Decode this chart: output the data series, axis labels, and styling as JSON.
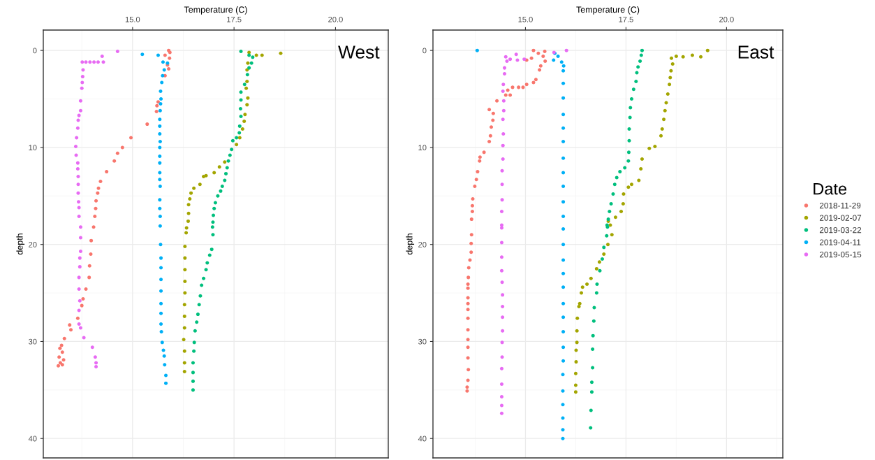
{
  "chart_data": [
    {
      "type": "scatter",
      "title": "West",
      "xlabel": "Temperature (C)",
      "ylabel": "depth",
      "xlim": [
        12.8,
        21.3
      ],
      "ylim": [
        42,
        -2.1
      ],
      "xticks": [
        {
          "value": 15,
          "label": "15.0"
        },
        {
          "value": 17.5,
          "label": "17.5"
        },
        {
          "value": 20,
          "label": "20.0"
        }
      ],
      "yticks": [
        0,
        10,
        20,
        30,
        40
      ],
      "grid": true,
      "marker": "circle",
      "series": [
        {
          "color": "#f8766d",
          "x": [
            15.89,
            15.92,
            15.8,
            15.91,
            15.86,
            15.89,
            15.8,
            15.63,
            15.6,
            15.59,
            15.36,
            14.96,
            14.75,
            14.63,
            14.55,
            14.36,
            14.21,
            14.16,
            14.14,
            14.1,
            14.09,
            14.07,
            14.04,
            13.98,
            13.97,
            13.94,
            13.93,
            13.85,
            13.78,
            13.75,
            13.65,
            13.45,
            13.48,
            13.32,
            13.25,
            13.21,
            13.27,
            13.19,
            13.3,
            13.22,
            13.17,
            13.27
          ],
          "values": [
            0,
            0.2,
            0.5,
            0.8,
            1.5,
            1.9,
            2.6,
            5.3,
            5.7,
            6.3,
            7.6,
            9.0,
            10.0,
            10.6,
            11.4,
            12.5,
            13.5,
            14.2,
            14.7,
            15.5,
            16.3,
            17.1,
            18.2,
            19.6,
            21.0,
            22.2,
            23.4,
            24.6,
            25.6,
            26.3,
            27.6,
            28.3,
            28.8,
            29.7,
            30.4,
            30.7,
            31.1,
            31.6,
            31.9,
            32.2,
            32.5,
            32.4
          ]
        },
        {
          "color": "#a3a500",
          "x": [
            18.65,
            18.19,
            18.05,
            17.87,
            17.84,
            17.82,
            17.82,
            17.8,
            17.84,
            17.82,
            17.77,
            17.75,
            17.71,
            17.64,
            17.56,
            17.27,
            17.14,
            17.01,
            16.81,
            16.75,
            16.66,
            16.51,
            16.44,
            16.41,
            16.38,
            16.38,
            16.37,
            16.33,
            16.32,
            16.29,
            16.29,
            16.29,
            16.29,
            16.29,
            16.28,
            16.28,
            16.28,
            16.26,
            16.28,
            16.28,
            16.28
          ],
          "values": [
            0.3,
            0.5,
            0.5,
            0.2,
            1.3,
            2.0,
            3.2,
            3.9,
            4.9,
            5.6,
            6.6,
            7.3,
            8.1,
            9.0,
            9.7,
            11.5,
            12.0,
            12.6,
            12.9,
            13.0,
            13.8,
            14.2,
            14.7,
            15.3,
            15.9,
            16.8,
            17.6,
            18.3,
            18.8,
            20.2,
            21.4,
            22.6,
            23.8,
            25.0,
            26.2,
            27.4,
            28.6,
            29.8,
            31.0,
            32.2,
            33.1
          ]
        },
        {
          "color": "#00bf7d",
          "x": [
            17.67,
            17.87,
            17.96,
            17.93,
            17.87,
            17.83,
            17.76,
            17.67,
            17.67,
            17.66,
            17.67,
            17.64,
            17.63,
            17.56,
            17.47,
            17.44,
            17.4,
            17.36,
            17.33,
            17.3,
            17.27,
            17.21,
            17.17,
            17.1,
            17.04,
            17.01,
            16.99,
            16.98,
            16.97,
            16.98,
            16.95,
            16.9,
            16.84,
            16.81,
            16.75,
            16.7,
            16.67,
            16.64,
            16.61,
            16.58,
            16.54,
            16.52,
            16.51,
            16.49,
            16.49,
            16.49,
            16.49
          ],
          "values": [
            0.1,
            0.5,
            0.7,
            1.3,
            1.8,
            2.5,
            3.5,
            4.3,
            5.1,
            6.0,
            6.8,
            7.8,
            8.5,
            9.0,
            9.3,
            10.2,
            10.8,
            11.4,
            12.1,
            12.7,
            13.4,
            14.0,
            14.5,
            15.0,
            15.7,
            16.3,
            17.0,
            17.7,
            18.2,
            19.0,
            20.5,
            21.1,
            21.9,
            22.6,
            23.5,
            24.2,
            25.3,
            26.2,
            27.2,
            28.0,
            28.9,
            30.1,
            31.0,
            32.2,
            33.2,
            34.1,
            35.0
          ]
        },
        {
          "color": "#00b0f6",
          "x": [
            15.24,
            15.63,
            15.75,
            15.86,
            15.78,
            15.74,
            15.72,
            15.69,
            15.7,
            15.69,
            15.68,
            15.67,
            15.67,
            15.67,
            15.68,
            15.67,
            15.67,
            15.67,
            15.67,
            15.67,
            15.68,
            15.67,
            15.67,
            15.68,
            15.68,
            15.69,
            15.7,
            15.7,
            15.7,
            15.7,
            15.7,
            15.7,
            15.7,
            15.71,
            15.73,
            15.76,
            15.78,
            15.79,
            15.82,
            15.82
          ],
          "values": [
            0.4,
            0.5,
            1.2,
            1.3,
            2.0,
            2.6,
            3.3,
            4.2,
            5.0,
            5.5,
            6.2,
            7.1,
            7.8,
            8.6,
            9.4,
            10.0,
            10.9,
            11.6,
            12.6,
            13.3,
            14.0,
            15.4,
            16.3,
            17.1,
            18.1,
            20.0,
            21.4,
            22.4,
            23.6,
            24.8,
            26.1,
            27.1,
            28.2,
            29.0,
            30.1,
            30.9,
            31.5,
            32.4,
            33.5,
            34.3
          ]
        },
        {
          "color": "#e76bf3",
          "x": [
            14.63,
            14.25,
            13.76,
            13.85,
            13.95,
            14.05,
            14.15,
            14.28,
            13.78,
            13.77,
            13.76,
            13.75,
            13.72,
            13.72,
            13.68,
            13.66,
            13.65,
            13.62,
            13.6,
            13.61,
            13.65,
            13.65,
            13.66,
            13.66,
            13.66,
            13.67,
            13.68,
            13.68,
            13.72,
            13.72,
            13.72,
            13.7,
            13.7,
            13.68,
            13.68,
            13.7,
            13.68,
            13.68,
            13.72,
            13.8,
            14.01,
            14.08,
            14.1,
            14.1
          ],
          "values": [
            0.1,
            0.6,
            1.2,
            1.2,
            1.2,
            1.2,
            1.2,
            1.2,
            2.0,
            2.7,
            3.3,
            3.9,
            5.2,
            6.2,
            6.7,
            7.2,
            8.0,
            9.0,
            9.9,
            10.8,
            11.6,
            12.2,
            13.0,
            13.8,
            14.7,
            15.6,
            16.2,
            17.1,
            18.2,
            19.3,
            20.7,
            21.4,
            22.3,
            23.4,
            24.6,
            25.8,
            26.8,
            28.2,
            28.6,
            29.6,
            30.6,
            31.6,
            32.2,
            32.6
          ]
        }
      ]
    },
    {
      "type": "scatter",
      "title": "East",
      "xlabel": "Temperature (C)",
      "ylabel": "depth",
      "xlim": [
        12.7,
        21.4
      ],
      "ylim": [
        42,
        -2.1
      ],
      "xticks": [
        {
          "value": 15,
          "label": "15.0"
        },
        {
          "value": 17.5,
          "label": "17.5"
        },
        {
          "value": 20,
          "label": "20.0"
        }
      ],
      "yticks": [
        0,
        10,
        20,
        30,
        40
      ],
      "grid": true,
      "marker": "circle",
      "legend": "right",
      "legend_title": "Date",
      "series": [
        {
          "name": "2018-11-29",
          "color": "#f8766d",
          "x": [
            15.2,
            15.48,
            15.32,
            15.15,
            15.03,
            15.44,
            15.49,
            15.38,
            15.35,
            15.26,
            15.2,
            15.03,
            14.94,
            14.83,
            14.68,
            14.56,
            14.51,
            14.62,
            14.29,
            14.1,
            14.2,
            14.19,
            14.15,
            14.13,
            14.1,
            13.97,
            13.87,
            13.86,
            13.81,
            13.78,
            13.74,
            13.69,
            13.68,
            13.68,
            13.66,
            13.66,
            13.65,
            13.65,
            13.62,
            13.59,
            13.58,
            13.57,
            13.57,
            13.57,
            13.57,
            13.57,
            13.57,
            13.57,
            13.57,
            13.57,
            13.57,
            13.58,
            13.57,
            13.55,
            13.55
          ],
          "values": [
            0,
            0.1,
            0.3,
            0.8,
            1.0,
            0.6,
            1.1,
            1.6,
            2.0,
            3.0,
            3.3,
            3.5,
            3.8,
            3.8,
            3.8,
            4.1,
            4.6,
            4.6,
            5.2,
            6.1,
            6.5,
            7.2,
            7.9,
            8.8,
            9.4,
            10.5,
            11.0,
            11.4,
            12.5,
            13.3,
            14.0,
            15.3,
            16.0,
            16.6,
            17.4,
            19.0,
            19.9,
            20.8,
            21.6,
            22.4,
            23.4,
            24.1,
            24.5,
            25.5,
            26.1,
            26.7,
            27.6,
            28.8,
            29.8,
            30.6,
            31.7,
            32.9,
            34.0,
            34.7,
            35.1
          ]
        },
        {
          "name": "2019-02-07",
          "color": "#a3a500",
          "x": [
            19.53,
            19.36,
            19.15,
            18.92,
            18.75,
            18.63,
            18.66,
            18.62,
            18.6,
            18.58,
            18.54,
            18.5,
            18.47,
            18.44,
            18.4,
            18.37,
            18.22,
            18.08,
            17.9,
            17.87,
            17.82,
            17.64,
            17.56,
            17.44,
            17.43,
            17.38,
            17.24,
            17.06,
            17.11,
            17.15,
            17.05,
            16.95,
            16.84,
            16.77,
            16.63,
            16.53,
            16.42,
            16.39,
            16.35,
            16.33,
            16.29,
            16.28,
            16.28,
            16.26,
            16.26,
            16.25,
            16.25,
            16.25
          ],
          "values": [
            0,
            0.65,
            0.5,
            0.65,
            0.6,
            0.8,
            1.4,
            2.1,
            2.8,
            3.5,
            4.5,
            5.4,
            6.2,
            7.1,
            8.1,
            8.8,
            9.9,
            10.1,
            11.2,
            12.2,
            13.4,
            13.8,
            14.1,
            14.8,
            15.8,
            16.6,
            17.2,
            17.6,
            18.0,
            19.0,
            20.0,
            21.0,
            21.8,
            22.5,
            23.5,
            24.1,
            24.4,
            25.0,
            26.1,
            26.4,
            27.6,
            28.9,
            30.1,
            30.9,
            32.1,
            33.3,
            34.5,
            35.2
          ]
        },
        {
          "name": "2019-03-22",
          "color": "#00bf7d",
          "x": [
            17.9,
            17.88,
            17.85,
            17.8,
            17.77,
            17.75,
            17.69,
            17.64,
            17.61,
            17.6,
            17.58,
            17.58,
            17.57,
            17.56,
            17.47,
            17.35,
            17.27,
            17.22,
            17.18,
            17.13,
            17.09,
            17.06,
            17.03,
            17.04,
            17.02,
            16.95,
            16.91,
            16.85,
            16.78,
            16.77,
            16.71,
            16.7,
            16.68,
            16.67,
            16.67,
            16.65,
            16.65,
            16.63,
            16.62
          ],
          "values": [
            0,
            0.5,
            1.1,
            1.7,
            2.3,
            3.2,
            4.0,
            5.0,
            5.9,
            6.9,
            8.1,
            9.3,
            10.5,
            11.4,
            12.1,
            12.5,
            13.1,
            13.8,
            14.8,
            15.8,
            16.6,
            17.4,
            18.0,
            18.2,
            19.1,
            20.3,
            21.5,
            22.7,
            24.1,
            25.0,
            26.5,
            27.9,
            29.4,
            30.8,
            32.7,
            34.2,
            35.2,
            37.1,
            38.9
          ]
        },
        {
          "name": "2019-04-11",
          "color": "#00b0f6",
          "x": [
            13.8,
            15.73,
            15.81,
            15.7,
            15.9,
            15.95,
            15.94,
            15.94,
            15.94,
            15.94,
            15.94,
            15.94,
            15.94,
            15.94,
            15.94,
            15.94,
            15.94,
            15.94,
            15.94,
            15.94,
            15.94,
            15.94,
            15.94,
            15.94,
            15.94,
            15.94,
            15.94,
            15.93,
            15.93,
            15.93,
            15.93,
            15.93,
            15.93
          ],
          "values": [
            0,
            0.3,
            0.6,
            1.0,
            1.2,
            1.6,
            2.1,
            3.4,
            4.9,
            6.6,
            8.0,
            9.4,
            11.1,
            12.6,
            14.0,
            15.6,
            17.1,
            18.4,
            20.0,
            21.6,
            23.0,
            24.4,
            26.1,
            27.5,
            29.0,
            30.6,
            32.0,
            33.4,
            35.1,
            36.5,
            37.9,
            39.1,
            40.0
          ]
        },
        {
          "name": "2019-05-15",
          "color": "#e76bf3",
          "x": [
            16.02,
            15.71,
            14.77,
            14.51,
            14.62,
            14.8,
            14.97,
            14.54,
            14.48,
            14.48,
            14.45,
            14.44,
            14.46,
            14.46,
            14.44,
            14.45,
            14.44,
            14.44,
            14.42,
            14.42,
            14.42,
            14.41,
            14.41,
            14.41,
            14.41,
            14.41,
            14.41,
            14.42,
            14.43,
            14.43,
            14.43,
            14.43,
            14.42,
            14.42,
            14.41,
            14.41,
            14.41,
            14.41,
            14.41
          ],
          "values": [
            0,
            0.2,
            0.4,
            0.65,
            0.9,
            1.0,
            0.9,
            1.1,
            1.8,
            2.4,
            3.5,
            4.2,
            5.2,
            6.2,
            7.1,
            8.6,
            9.8,
            11.2,
            12.4,
            13.8,
            15.4,
            16.6,
            18.0,
            18.3,
            19.8,
            21.3,
            22.7,
            23.9,
            25.2,
            26.4,
            27.5,
            28.9,
            30.1,
            31.6,
            32.8,
            34.4,
            35.7,
            36.6,
            37.4
          ]
        }
      ]
    }
  ]
}
